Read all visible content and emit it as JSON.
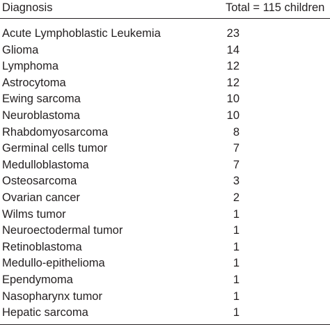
{
  "table": {
    "headers": {
      "diagnosis": "Diagnosis",
      "total": "Total = 115 children"
    },
    "rows": [
      {
        "diagnosis": "Acute Lymphoblastic Leukemia",
        "count": "23"
      },
      {
        "diagnosis": "Glioma",
        "count": "14"
      },
      {
        "diagnosis": "Lymphoma",
        "count": "12"
      },
      {
        "diagnosis": "Astrocytoma",
        "count": "12"
      },
      {
        "diagnosis": "Ewing sarcoma",
        "count": "10"
      },
      {
        "diagnosis": "Neuroblastoma",
        "count": "10"
      },
      {
        "diagnosis": "Rhabdomyosarcoma",
        "count": "8"
      },
      {
        "diagnosis": "Germinal cells tumor",
        "count": "7"
      },
      {
        "diagnosis": "Medulloblastoma",
        "count": "7"
      },
      {
        "diagnosis": "Osteosarcoma",
        "count": "3"
      },
      {
        "diagnosis": "Ovarian cancer",
        "count": "2"
      },
      {
        "diagnosis": "Wilms tumor",
        "count": "1"
      },
      {
        "diagnosis": "Neuroectodermal tumor",
        "count": "1"
      },
      {
        "diagnosis": "Retinoblastoma",
        "count": "1"
      },
      {
        "diagnosis": "Medullo-epithelioma",
        "count": "1"
      },
      {
        "diagnosis": "Ependymoma",
        "count": "1"
      },
      {
        "diagnosis": "Nasopharynx tumor",
        "count": "1"
      },
      {
        "diagnosis": "Hepatic sarcoma",
        "count": "1"
      }
    ]
  }
}
